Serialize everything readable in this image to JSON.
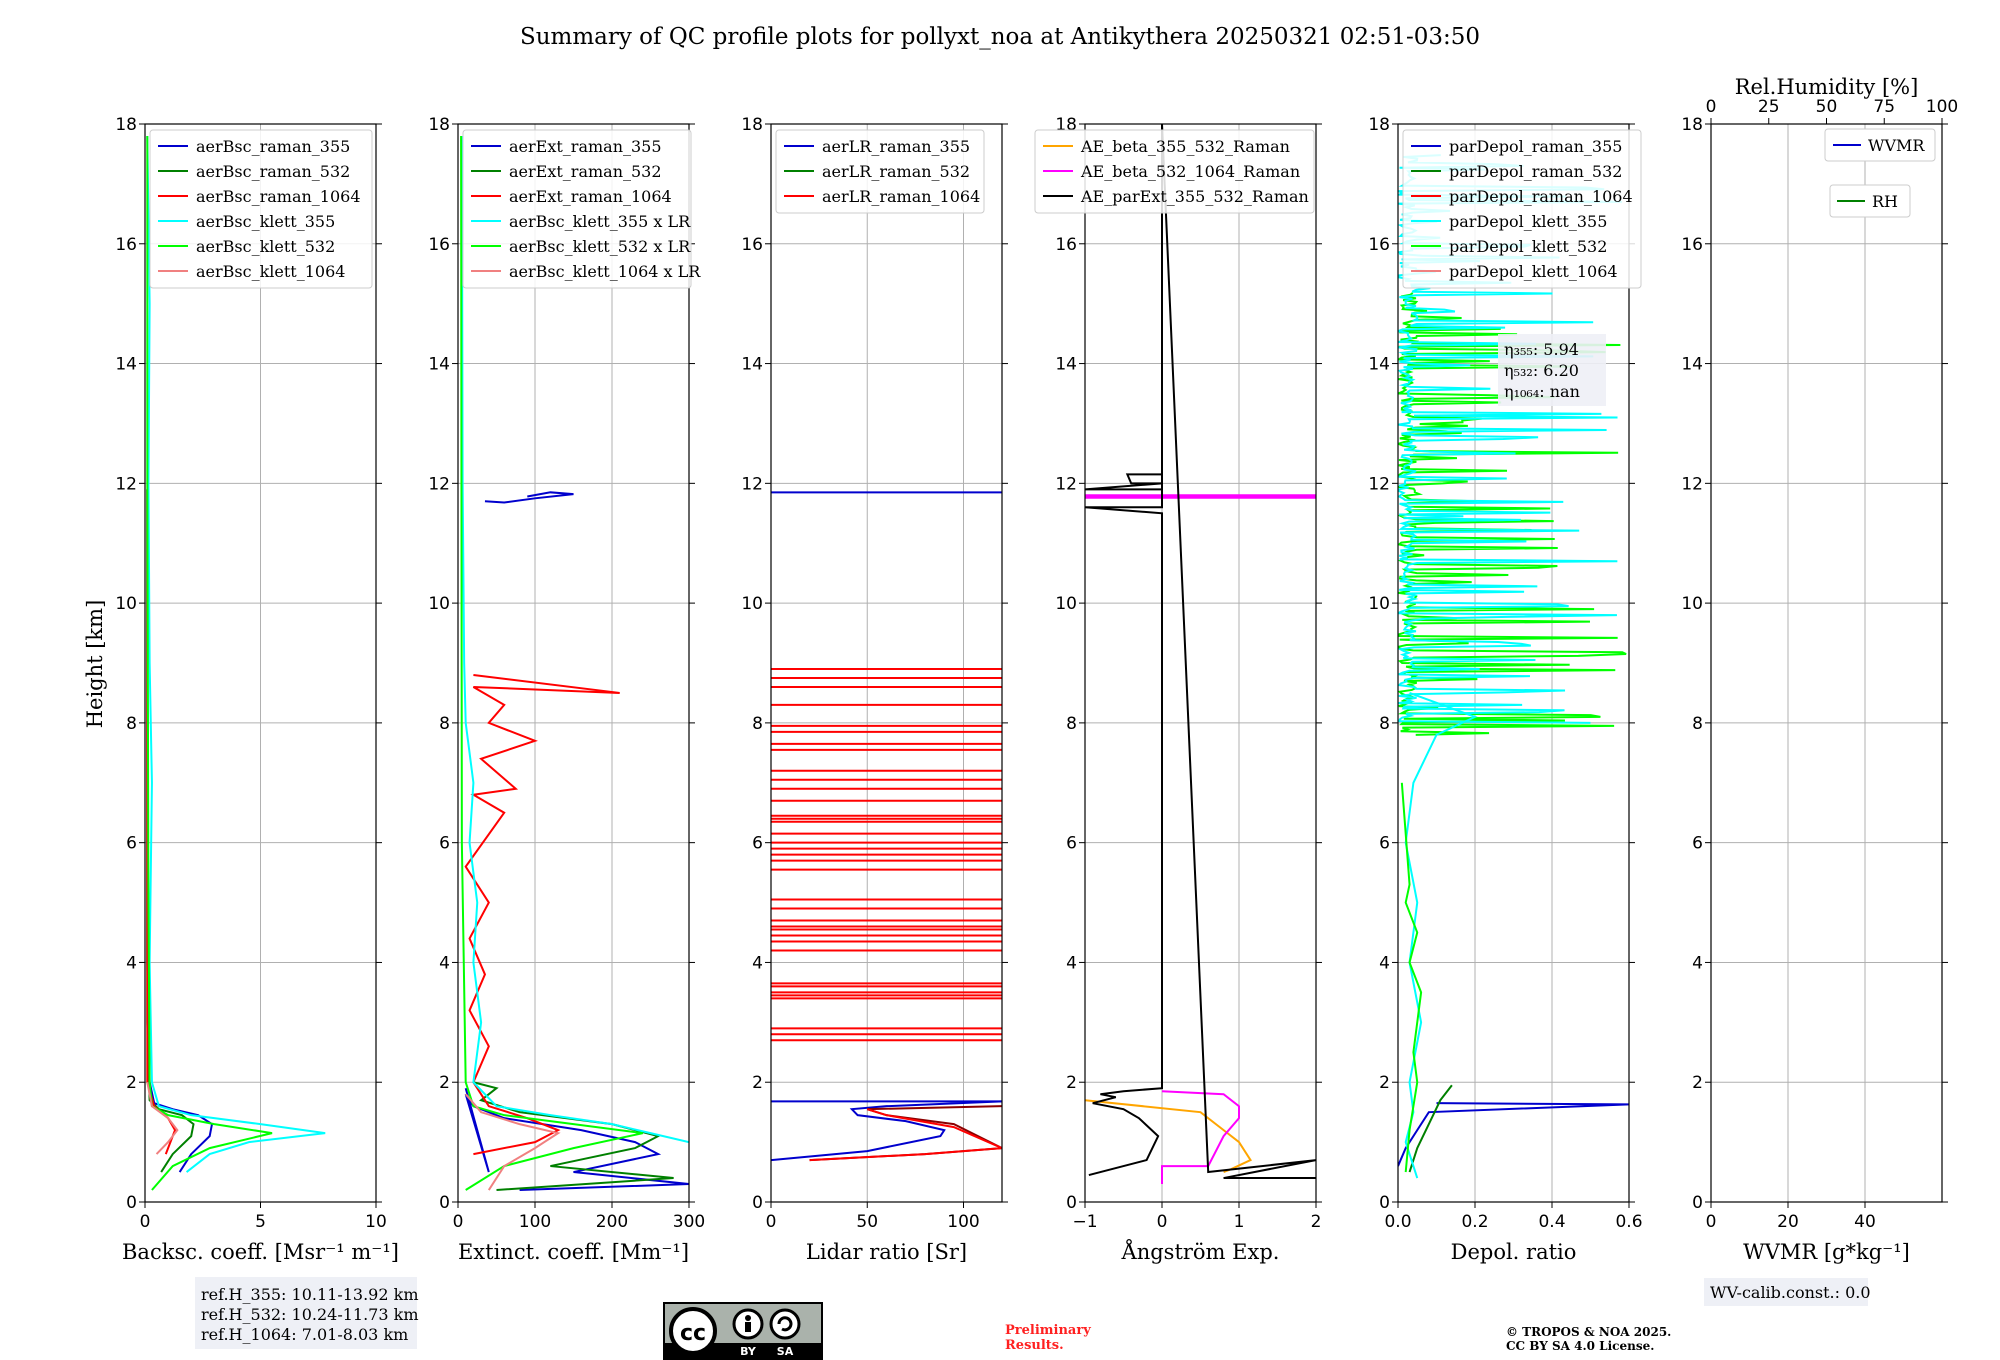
{
  "title": "Summary of QC profile plots for pollyxt_noa at Antikythera 20250321 02:51-03:50",
  "colors": {
    "c355": "#0000cd",
    "c532": "#008000",
    "c1064": "#ff0000",
    "k355": "#00ffff",
    "k532": "#00ff00",
    "k1064": "#f08080",
    "orange": "#ffa500",
    "magenta": "#ff00ff",
    "black": "#000000"
  },
  "ylabel": "Height [km]",
  "footer": {
    "ref_lines": [
      "ref.H_355: 10.11-13.92 km",
      "ref.H_532: 10.24-11.73 km",
      "ref.H_1064: 7.01-8.03 km"
    ],
    "license_by": "BY",
    "license_sa": "SA",
    "preliminary_1": "Preliminary",
    "preliminary_2": "Results.",
    "copyright_1": "© TROPOS & NOA 2025.",
    "copyright_2": "CC BY SA 4.0 License.",
    "wv_calib": "WV-calib.const.: 0.0"
  },
  "chart_data": [
    {
      "type": "line",
      "xlabel": "Backsc. coeff. [Msr⁻¹ m⁻¹]",
      "ylabel": "Height [km]",
      "xlim": [
        0,
        10
      ],
      "ylim": [
        0,
        18
      ],
      "xticks": [
        "0",
        "5",
        "10"
      ],
      "yticks": [
        "0",
        "2",
        "4",
        "6",
        "8",
        "10",
        "12",
        "14",
        "16",
        "18"
      ],
      "legend": [
        "aerBsc_raman_355",
        "aerBsc_raman_532",
        "aerBsc_raman_1064",
        "aerBsc_klett_355",
        "aerBsc_klett_532",
        "aerBsc_klett_1064"
      ],
      "series": [
        {
          "name": "aerBsc_raman_355",
          "color": "#0000cd",
          "x": [
            1.5,
            2.0,
            2.8,
            2.9,
            2.3,
            1.2,
            0.4,
            0.2,
            0.1,
            0.1
          ],
          "y": [
            0.5,
            0.8,
            1.1,
            1.3,
            1.45,
            1.55,
            1.65,
            2.0,
            4.0,
            11.9
          ]
        },
        {
          "name": "aerBsc_raman_532",
          "color": "#008000",
          "x": [
            0.7,
            1.2,
            2.0,
            2.1,
            1.6,
            0.6,
            0.2,
            0.1,
            0.1
          ],
          "y": [
            0.5,
            0.8,
            1.1,
            1.3,
            1.45,
            1.55,
            1.7,
            3.0,
            11.9
          ]
        },
        {
          "name": "aerBsc_raman_1064",
          "color": "#ff0000",
          "x": [
            0.9,
            1.1,
            1.3,
            1.0,
            0.4,
            0.1,
            0.1
          ],
          "y": [
            0.8,
            1.0,
            1.2,
            1.4,
            1.6,
            2.0,
            11.9
          ]
        },
        {
          "name": "aerBsc_klett_355",
          "color": "#00ffff",
          "x": [
            1.8,
            2.8,
            4.5,
            7.8,
            5.0,
            2.0,
            0.6,
            0.3,
            0.2,
            0.3,
            0.2,
            0.15,
            0.2,
            0.1
          ],
          "y": [
            0.5,
            0.8,
            1.0,
            1.15,
            1.3,
            1.45,
            1.6,
            2.0,
            4.0,
            7.0,
            9.0,
            12.0,
            15.0,
            17.8
          ]
        },
        {
          "name": "aerBsc_klett_532",
          "color": "#00ff00",
          "x": [
            0.3,
            1.2,
            2.8,
            5.5,
            3.0,
            1.0,
            0.3,
            0.2,
            0.15,
            0.1,
            0.1
          ],
          "y": [
            0.2,
            0.6,
            0.9,
            1.15,
            1.3,
            1.45,
            1.6,
            2.0,
            5.0,
            12.0,
            17.8
          ]
        },
        {
          "name": "aerBsc_klett_1064",
          "color": "#f08080",
          "x": [
            0.5,
            1.0,
            1.4,
            1.0,
            0.3,
            0.1
          ],
          "y": [
            0.8,
            1.0,
            1.2,
            1.4,
            1.6,
            2.0
          ]
        }
      ]
    },
    {
      "type": "line",
      "xlabel": "Extinct. coeff. [Mm⁻¹]",
      "xlim": [
        0,
        300
      ],
      "ylim": [
        0,
        18
      ],
      "xticks": [
        "0",
        "100",
        "200",
        "300"
      ],
      "yticks": [
        "0",
        "2",
        "4",
        "6",
        "8",
        "10",
        "12",
        "14",
        "16",
        "18"
      ],
      "legend": [
        "aerExt_raman_355",
        "aerExt_raman_532",
        "aerExt_raman_1064",
        "aerBsc_klett_355 x LR",
        "aerBsc_klett_532 x LR",
        "aerBsc_klett_1064 x LR"
      ],
      "series": [
        {
          "name": "aerExt_raman_355",
          "color": "#0000cd",
          "x": [
            80,
            300,
            150,
            260,
            230,
            160,
            60,
            20,
            10,
            40,
            10
          ],
          "y": [
            0.2,
            0.3,
            0.5,
            0.8,
            1.0,
            1.2,
            1.4,
            1.6,
            1.8,
            0.5,
            1.9
          ]
        },
        {
          "name": "aerExt_raman_532",
          "color": "#008000",
          "x": [
            50,
            280,
            120,
            230,
            260,
            200,
            80,
            30,
            50,
            20
          ],
          "y": [
            0.2,
            0.4,
            0.6,
            0.9,
            1.1,
            1.3,
            1.5,
            1.7,
            1.9,
            2.0
          ]
        },
        {
          "name": "aerExt_raman_1064",
          "color": "#ff0000",
          "x": [
            20,
            100,
            130,
            90,
            40,
            20,
            40,
            15,
            35,
            15,
            40,
            10,
            60,
            20,
            75,
            30,
            100,
            40,
            60,
            20,
            210,
            20
          ],
          "y": [
            0.8,
            1.0,
            1.2,
            1.4,
            1.6,
            2.0,
            2.6,
            3.2,
            3.8,
            4.4,
            5.0,
            5.6,
            6.5,
            6.8,
            6.9,
            7.4,
            7.7,
            8.0,
            8.3,
            8.6,
            8.5,
            8.8
          ]
        },
        {
          "name": "aerBsc_klett_355 x LR",
          "color": "#00ffff",
          "x": [
            300,
            250,
            200,
            120,
            50,
            20,
            30,
            20,
            25,
            15,
            20,
            10,
            8,
            6,
            5
          ],
          "y": [
            1.0,
            1.15,
            1.3,
            1.45,
            1.6,
            2.0,
            3.0,
            4.0,
            5.0,
            6.0,
            7.0,
            8.0,
            9.0,
            12.0,
            17.8
          ]
        },
        {
          "name": "aerBsc_klett_532 x LR",
          "color": "#00ff00",
          "x": [
            10,
            60,
            150,
            240,
            150,
            60,
            20,
            10,
            5,
            4
          ],
          "y": [
            0.2,
            0.6,
            0.9,
            1.15,
            1.3,
            1.45,
            1.6,
            2.0,
            6.0,
            17.8
          ]
        },
        {
          "name": "aerBsc_klett_1064 x LR",
          "color": "#f08080",
          "x": [
            40,
            60,
            100,
            130,
            80,
            30,
            10
          ],
          "y": [
            0.2,
            0.6,
            0.9,
            1.15,
            1.3,
            1.5,
            1.8
          ]
        },
        {
          "name": "aerExt_raman_355 upper",
          "color": "#0000cd",
          "x": [
            35,
            60,
            100,
            150,
            120,
            90
          ],
          "y": [
            11.7,
            11.68,
            11.75,
            11.82,
            11.85,
            11.78
          ]
        }
      ],
      "hidden_text": [
        "",
        "",
        ""
      ]
    },
    {
      "type": "line",
      "xlabel": "Lidar ratio [Sr]",
      "xlim": [
        0,
        120
      ],
      "ylim": [
        0,
        18
      ],
      "xticks": [
        "0",
        "50",
        "100"
      ],
      "yticks": [
        "0",
        "2",
        "4",
        "6",
        "8",
        "10",
        "12",
        "14",
        "16",
        "18"
      ],
      "legend": [
        "aerLR_raman_355",
        "aerLR_raman_532",
        "aerLR_raman_1064"
      ],
      "series": [
        {
          "name": "aerLR_raman_355",
          "color": "#0000cd",
          "x": [
            0,
            50,
            88,
            90,
            70,
            45,
            42,
            60,
            120
          ],
          "y": [
            0.7,
            0.85,
            1.1,
            1.2,
            1.35,
            1.45,
            1.55,
            1.6,
            1.68
          ]
        },
        {
          "name": "aerLR_raman_532",
          "color": "#8b0000",
          "x": [
            20,
            80,
            120,
            95,
            60,
            50,
            120
          ],
          "y": [
            0.7,
            0.8,
            0.9,
            1.3,
            1.45,
            1.55,
            1.6
          ]
        },
        {
          "name": "aerLR_raman_1064",
          "color": "#ff0000",
          "x": [
            20,
            80,
            120,
            95,
            60,
            50
          ],
          "y": [
            0.7,
            0.8,
            0.9,
            1.25,
            1.45,
            1.55
          ]
        }
      ],
      "hlines": [
        {
          "color": "#0000cd",
          "y": [
            11.85,
            1.68
          ]
        },
        {
          "color": "#ff0000",
          "y": [
            2.7,
            2.8,
            2.9,
            3.4,
            3.45,
            3.5,
            3.6,
            3.65,
            4.2,
            4.35,
            4.45,
            4.55,
            4.6,
            4.7,
            4.9,
            5.05,
            5.55,
            5.7,
            5.8,
            5.9,
            6.0,
            6.15,
            6.35,
            6.4,
            6.45,
            6.7,
            6.9,
            7.05,
            7.2,
            7.55,
            7.65,
            7.85,
            7.95,
            8.3,
            8.6,
            8.75,
            8.9
          ]
        }
      ]
    },
    {
      "type": "line",
      "xlabel": "Ångström Exp.",
      "xlim": [
        -1,
        2
      ],
      "ylim": [
        0,
        18
      ],
      "xticks": [
        "−1",
        "0",
        "1",
        "2"
      ],
      "yticks": [
        "0",
        "2",
        "4",
        "6",
        "8",
        "10",
        "12",
        "14",
        "16",
        "18"
      ],
      "legend": [
        "AE_beta_355_532_Raman",
        "AE_beta_532_1064_Raman",
        "AE_parExt_355_532_Raman"
      ],
      "series": [
        {
          "name": "AE_beta_355_532_Raman",
          "color": "#ffa500",
          "x": [
            -1,
            0.5,
            0.8,
            1.0,
            1.15,
            0.9,
            0.8
          ],
          "y": [
            1.7,
            1.5,
            1.2,
            1.0,
            0.7,
            0.55,
            0.5
          ]
        },
        {
          "name": "AE_beta_532_1064_Raman",
          "color": "#ff00ff",
          "x": [
            0,
            0.8,
            1.0,
            1.0,
            0.8,
            0.6,
            0,
            0
          ],
          "y": [
            1.85,
            1.8,
            1.6,
            1.4,
            1.1,
            0.6,
            0.6,
            0.3
          ]
        },
        {
          "name": "AE_parExt_355_532_Raman",
          "color": "#000000",
          "x": [
            -0.95,
            -0.2,
            -0.05,
            -0.3,
            -0.5,
            -0.9,
            -0.6,
            -0.8,
            -0.5,
            0,
            0,
            -1,
            0,
            0,
            -0.45,
            -0.4,
            0,
            0,
            -1,
            0,
            0,
            0.6,
            2,
            0.8,
            2
          ],
          "y": [
            0.45,
            0.7,
            1.1,
            1.4,
            1.55,
            1.65,
            1.75,
            1.8,
            1.85,
            1.9,
            11.5,
            11.6,
            11.6,
            12.15,
            12.15,
            12.0,
            12.0,
            12.0,
            11.9,
            11.9,
            18,
            0.5,
            0.7,
            0.4,
            0.4
          ]
        }
      ],
      "hlines": [
        {
          "color": "#ff00ff",
          "y": [
            11.76,
            11.78,
            11.8
          ]
        }
      ]
    },
    {
      "type": "line",
      "xlabel": "Depol. ratio",
      "xlim": [
        0,
        0.6
      ],
      "ylim": [
        0,
        18
      ],
      "xticks": [
        "0.0",
        "0.2",
        "0.4",
        "0.6"
      ],
      "yticks": [
        "0",
        "2",
        "4",
        "6",
        "8",
        "10",
        "12",
        "14",
        "16",
        "18"
      ],
      "legend": [
        "parDepol_raman_355",
        "parDepol_raman_532",
        "parDepol_raman_1064",
        "parDepol_klett_355",
        "parDepol_klett_532",
        "parDepol_klett_1064"
      ],
      "annotations": [
        "η₃₅₅: 5.94",
        "η₅₃₂: 6.20",
        "η₁₀₆₄: nan"
      ],
      "series": [
        {
          "name": "parDepol_raman_355",
          "color": "#0000cd",
          "x": [
            0,
            0.02,
            0.05,
            0.08,
            0.6,
            0.1
          ],
          "y": [
            0.6,
            0.9,
            1.2,
            1.5,
            1.63,
            1.65
          ]
        },
        {
          "name": "parDepol_raman_532",
          "color": "#008000",
          "x": [
            0.03,
            0.05,
            0.08,
            0.11,
            0.14
          ],
          "y": [
            0.5,
            0.9,
            1.3,
            1.7,
            1.95
          ]
        },
        {
          "name": "parDepol_klett_355",
          "color": "#00ffff",
          "x": [
            0.05,
            0.02,
            0.04,
            0.03,
            0.06,
            0.03,
            0.05,
            0.02,
            0.04,
            0.1,
            0.2,
            0.03
          ],
          "y": [
            0.4,
            1.0,
            1.5,
            2.0,
            3.0,
            4.0,
            5.0,
            6.0,
            7.0,
            7.8,
            8.1,
            8.5
          ]
        },
        {
          "name": "parDepol_klett_532",
          "color": "#00ff00",
          "x": [
            0.02,
            0.03,
            0.05,
            0.04,
            0.06,
            0.03,
            0.05,
            0.02,
            0.03,
            0.01
          ],
          "y": [
            0.5,
            1.2,
            2.0,
            2.5,
            3.5,
            4.0,
            4.5,
            5.0,
            5.3,
            7.0
          ]
        }
      ],
      "noise_ranges": [
        {
          "color": "#00ff00",
          "from": 7.8,
          "to": 15.2,
          "maxx": 0.6
        },
        {
          "color": "#00ffff",
          "from": 8.0,
          "to": 17.5,
          "maxx": 0.6
        }
      ]
    },
    {
      "type": "line",
      "xlabel": "WVMR [g*kg⁻¹]",
      "top_xlabel": "Rel.Humidity [%]",
      "xlim": [
        0,
        60
      ],
      "ylim": [
        0,
        18
      ],
      "xticks": [
        "0",
        "20",
        "40"
      ],
      "top_xticks": [
        "0",
        "25",
        "50",
        "75",
        "100"
      ],
      "yticks": [
        "0",
        "2",
        "4",
        "6",
        "8",
        "10",
        "12",
        "14",
        "16",
        "18"
      ],
      "legend": [
        "WVMR",
        "RH"
      ],
      "series": []
    }
  ]
}
